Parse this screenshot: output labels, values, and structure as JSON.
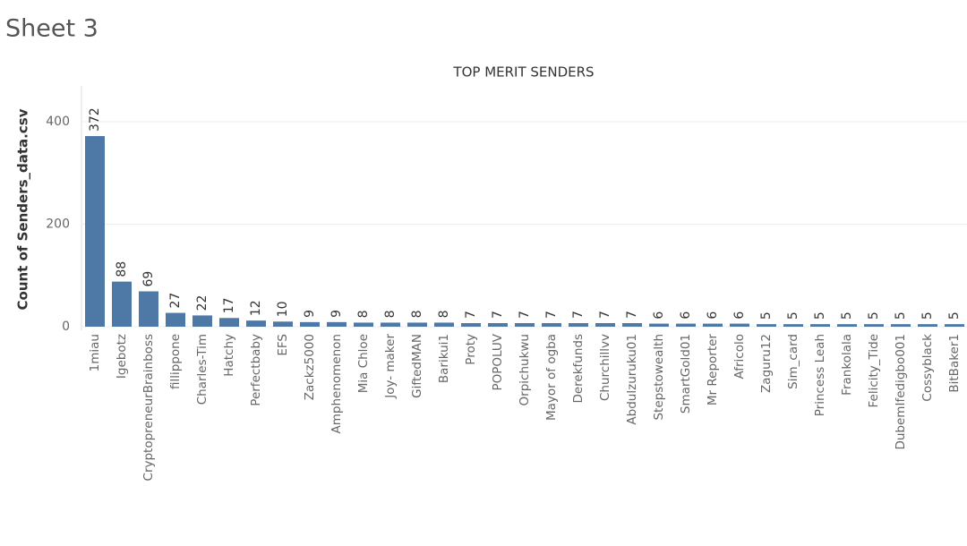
{
  "sheet_title": "Sheet 3",
  "chart_data": {
    "type": "bar",
    "title": "TOP MERIT SENDERS",
    "y_label": "Count of Senders_data.csv",
    "categories": [
      "1miau",
      "Igebotz",
      "CryptopreneurBrainboss",
      "fillippone",
      "Charles-Tim",
      "Hatchy",
      "Perfectbaby",
      "EFS",
      "Zackz5000",
      "Amphenomenon",
      "Mia Chloe",
      "Joy- maker",
      "GiftedMAN",
      "Barikui1",
      "Proty",
      "POPOLUV",
      "Orpichukwu",
      "Mayor of ogba",
      "Derekfunds",
      "Churchillvv",
      "Abdulzuruku01",
      "Stepstowealth",
      "SmartGold01",
      "Mr Reporter",
      "Africolo",
      "Zaguru12",
      "Sim_card",
      "Princess Leah",
      "Frankolala",
      "Felicity_Tide",
      "DubemIfedigbo001",
      "Cossyblack",
      "BitBaker1"
    ],
    "values": [
      372,
      88,
      69,
      27,
      22,
      17,
      12,
      10,
      9,
      9,
      8,
      8,
      8,
      8,
      7,
      7,
      7,
      7,
      7,
      7,
      7,
      6,
      6,
      6,
      6,
      5,
      5,
      5,
      5,
      5,
      5,
      5,
      5
    ],
    "color": "#4e79a7",
    "ylim": [
      0,
      470
    ],
    "yticks": [
      0,
      200,
      400
    ],
    "grid": true
  }
}
